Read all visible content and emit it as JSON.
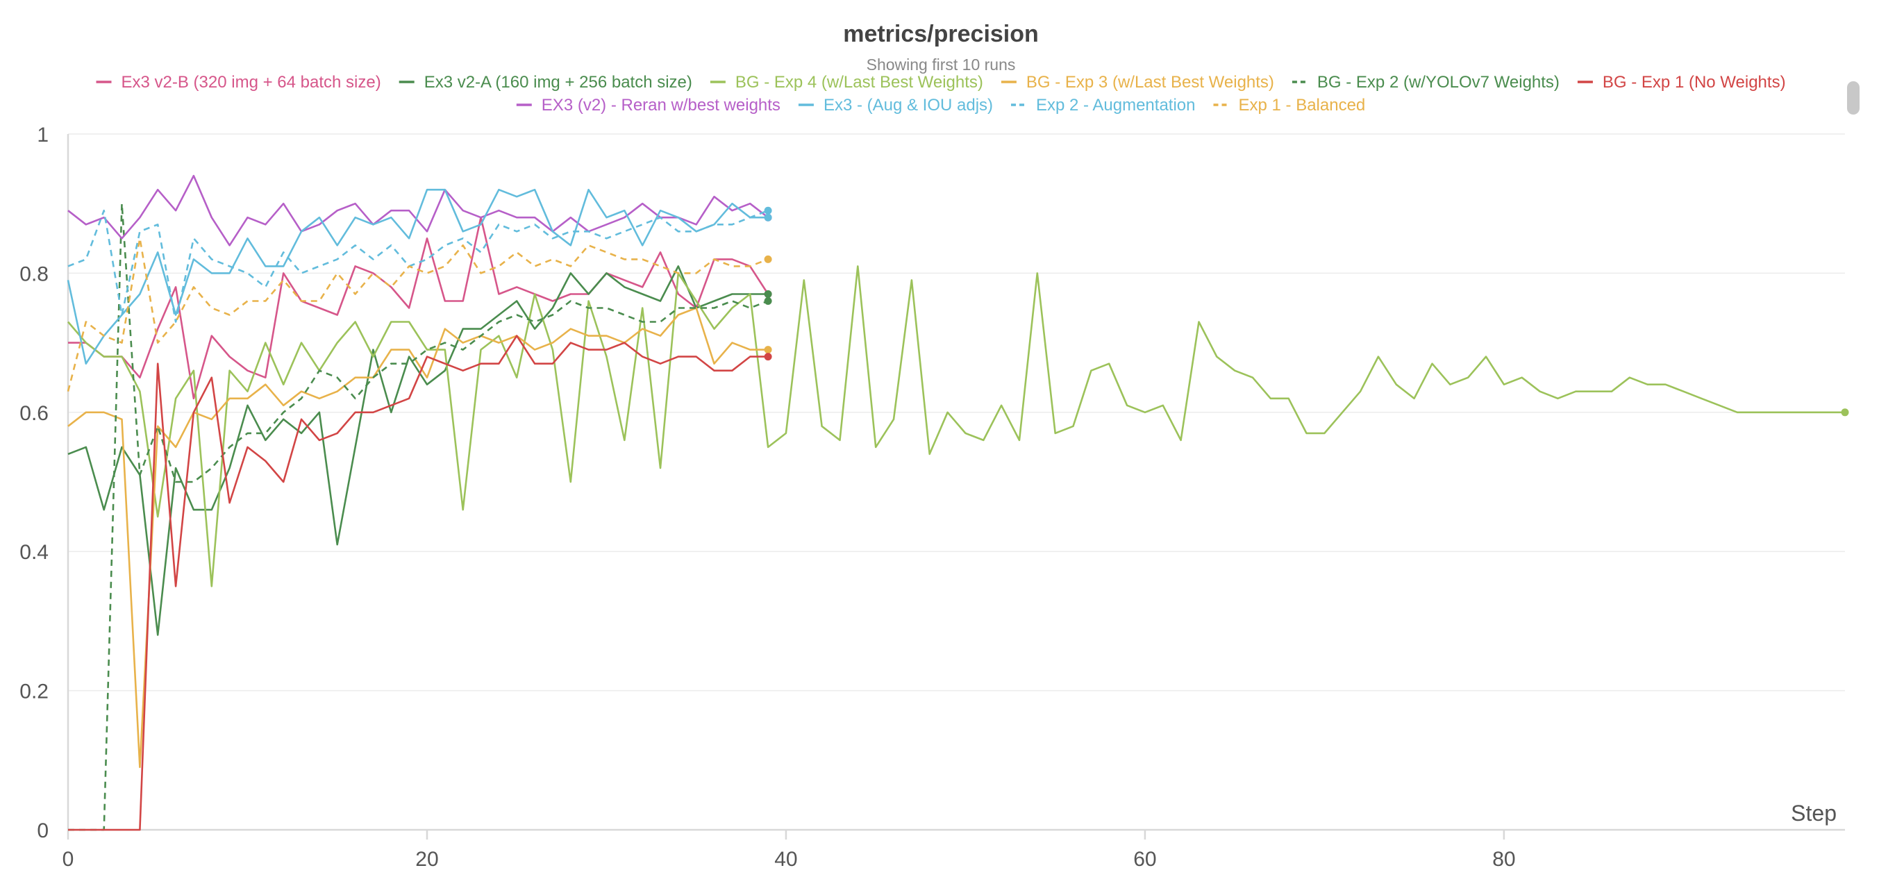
{
  "chart_data": {
    "type": "line",
    "title": "metrics/precision",
    "subtitle": "Showing first 10 runs",
    "xlabel": "Step",
    "ylabel": "",
    "xlim": [
      0,
      99
    ],
    "ylim": [
      0,
      1
    ],
    "x_ticks": [
      0,
      20,
      40,
      60,
      80
    ],
    "y_ticks": [
      0,
      0.2,
      0.4,
      0.6,
      0.8,
      1
    ],
    "y_tick_labels": [
      "0",
      "0.2",
      "0.4",
      "0.6",
      "0.8",
      "1"
    ],
    "grid": true,
    "legend_position": "top",
    "series": [
      {
        "name": "Ex3 v2-B (320 img + 64 batch size)",
        "color": "#d6568a",
        "dashed": false,
        "values": [
          0.7,
          0.7,
          0.68,
          0.68,
          0.65,
          0.72,
          0.78,
          0.62,
          0.71,
          0.68,
          0.66,
          0.65,
          0.8,
          0.76,
          0.75,
          0.74,
          0.81,
          0.8,
          0.78,
          0.75,
          0.85,
          0.76,
          0.76,
          0.88,
          0.77,
          0.78,
          0.77,
          0.76,
          0.77,
          0.77,
          0.8,
          0.79,
          0.78,
          0.83,
          0.77,
          0.75,
          0.82,
          0.82,
          0.81,
          0.77
        ]
      },
      {
        "name": "Ex3 v2-A (160 img + 256 batch size)",
        "color": "#4a8c4e",
        "dashed": false,
        "values": [
          0.54,
          0.55,
          0.46,
          0.55,
          0.51,
          0.28,
          0.52,
          0.46,
          0.46,
          0.52,
          0.61,
          0.56,
          0.59,
          0.57,
          0.6,
          0.41,
          0.55,
          0.69,
          0.6,
          0.68,
          0.64,
          0.66,
          0.72,
          0.72,
          0.74,
          0.76,
          0.72,
          0.75,
          0.8,
          0.77,
          0.8,
          0.78,
          0.77,
          0.76,
          0.81,
          0.75,
          0.76,
          0.77,
          0.77,
          0.77
        ]
      },
      {
        "name": "BG - Exp 4 (w/Last Best Weights)",
        "color": "#9cc25a",
        "dashed": false,
        "values": [
          0.73,
          0.7,
          0.68,
          0.68,
          0.63,
          0.45,
          0.62,
          0.66,
          0.35,
          0.66,
          0.63,
          0.7,
          0.64,
          0.7,
          0.66,
          0.7,
          0.73,
          0.68,
          0.73,
          0.73,
          0.69,
          0.69,
          0.46,
          0.69,
          0.71,
          0.65,
          0.77,
          0.69,
          0.5,
          0.76,
          0.68,
          0.56,
          0.75,
          0.52,
          0.8,
          0.76,
          0.72,
          0.75,
          0.77,
          0.55,
          0.57,
          0.79,
          0.58,
          0.56,
          0.81,
          0.55,
          0.59,
          0.79,
          0.54,
          0.6,
          0.57,
          0.56,
          0.61,
          0.56,
          0.8,
          0.57,
          0.58,
          0.66,
          0.67,
          0.61,
          0.6,
          0.61,
          0.56,
          0.73,
          0.68,
          0.66,
          0.65,
          0.62,
          0.62,
          0.57,
          0.57,
          0.6,
          0.63,
          0.68,
          0.64,
          0.62,
          0.67,
          0.64,
          0.65,
          0.68,
          0.64,
          0.65,
          0.63,
          0.62,
          0.63,
          0.63,
          0.63,
          0.65,
          0.64,
          0.64,
          0.63,
          0.62,
          0.61,
          0.6,
          0.6,
          0.6,
          0.6,
          0.6,
          0.6,
          0.6
        ]
      },
      {
        "name": "BG - Exp 3 (w/Last Best Weights)",
        "color": "#e8b24a",
        "dashed": false,
        "values": [
          0.58,
          0.6,
          0.6,
          0.59,
          0.09,
          0.58,
          0.55,
          0.6,
          0.59,
          0.62,
          0.62,
          0.64,
          0.61,
          0.63,
          0.62,
          0.63,
          0.65,
          0.65,
          0.69,
          0.69,
          0.65,
          0.72,
          0.7,
          0.71,
          0.7,
          0.71,
          0.69,
          0.7,
          0.72,
          0.71,
          0.71,
          0.7,
          0.72,
          0.71,
          0.74,
          0.75,
          0.67,
          0.7,
          0.69,
          0.69
        ]
      },
      {
        "name": "BG - Exp 2 (w/YOLOv7 Weights)",
        "color": "#4a8c4e",
        "dashed": true,
        "values": [
          0.0,
          0.0,
          0.0,
          0.9,
          0.51,
          0.58,
          0.5,
          0.5,
          0.52,
          0.55,
          0.57,
          0.57,
          0.6,
          0.62,
          0.66,
          0.65,
          0.62,
          0.65,
          0.67,
          0.67,
          0.69,
          0.7,
          0.69,
          0.71,
          0.73,
          0.74,
          0.73,
          0.74,
          0.76,
          0.75,
          0.75,
          0.74,
          0.73,
          0.73,
          0.75,
          0.75,
          0.75,
          0.76,
          0.75,
          0.76
        ]
      },
      {
        "name": "BG - Exp 1 (No Weights)",
        "color": "#d24545",
        "dashed": false,
        "values": [
          0.0,
          0.0,
          0.0,
          0.0,
          0.0,
          0.67,
          0.35,
          0.6,
          0.65,
          0.47,
          0.55,
          0.53,
          0.5,
          0.59,
          0.56,
          0.57,
          0.6,
          0.6,
          0.61,
          0.62,
          0.68,
          0.67,
          0.66,
          0.67,
          0.67,
          0.71,
          0.67,
          0.67,
          0.7,
          0.69,
          0.69,
          0.7,
          0.68,
          0.67,
          0.68,
          0.68,
          0.66,
          0.66,
          0.68,
          0.68
        ]
      },
      {
        "name": "EX3 (v2) - Reran w/best weights",
        "color": "#b65fc8",
        "dashed": false,
        "values": [
          0.89,
          0.87,
          0.88,
          0.85,
          0.88,
          0.92,
          0.89,
          0.94,
          0.88,
          0.84,
          0.88,
          0.87,
          0.9,
          0.86,
          0.87,
          0.89,
          0.9,
          0.87,
          0.89,
          0.89,
          0.86,
          0.92,
          0.89,
          0.88,
          0.89,
          0.88,
          0.88,
          0.86,
          0.88,
          0.86,
          0.87,
          0.88,
          0.9,
          0.88,
          0.88,
          0.87,
          0.91,
          0.89,
          0.9,
          0.88
        ]
      },
      {
        "name": "Ex3 - (Aug & IOU adjs)",
        "color": "#62bcdc",
        "dashed": false,
        "values": [
          0.79,
          0.67,
          0.71,
          0.74,
          0.77,
          0.83,
          0.74,
          0.82,
          0.8,
          0.8,
          0.85,
          0.81,
          0.81,
          0.86,
          0.88,
          0.84,
          0.88,
          0.87,
          0.88,
          0.85,
          0.92,
          0.92,
          0.86,
          0.87,
          0.92,
          0.91,
          0.92,
          0.86,
          0.84,
          0.92,
          0.88,
          0.89,
          0.84,
          0.89,
          0.88,
          0.86,
          0.87,
          0.9,
          0.88,
          0.88
        ]
      },
      {
        "name": "Exp 2 - Augmentation",
        "color": "#62bcdc",
        "dashed": true,
        "values": [
          0.81,
          0.82,
          0.89,
          0.74,
          0.86,
          0.87,
          0.73,
          0.85,
          0.82,
          0.81,
          0.8,
          0.78,
          0.83,
          0.8,
          0.81,
          0.82,
          0.84,
          0.82,
          0.84,
          0.81,
          0.82,
          0.84,
          0.85,
          0.83,
          0.87,
          0.86,
          0.87,
          0.85,
          0.86,
          0.86,
          0.85,
          0.86,
          0.87,
          0.88,
          0.86,
          0.86,
          0.87,
          0.87,
          0.88,
          0.89
        ]
      },
      {
        "name": "Exp 1 - Balanced",
        "color": "#e8b24a",
        "dashed": true,
        "values": [
          0.63,
          0.73,
          0.71,
          0.7,
          0.85,
          0.7,
          0.73,
          0.78,
          0.75,
          0.74,
          0.76,
          0.76,
          0.79,
          0.76,
          0.76,
          0.8,
          0.77,
          0.8,
          0.78,
          0.81,
          0.8,
          0.81,
          0.84,
          0.8,
          0.81,
          0.83,
          0.81,
          0.82,
          0.81,
          0.84,
          0.83,
          0.82,
          0.82,
          0.81,
          0.8,
          0.8,
          0.82,
          0.81,
          0.81,
          0.82
        ]
      }
    ]
  }
}
